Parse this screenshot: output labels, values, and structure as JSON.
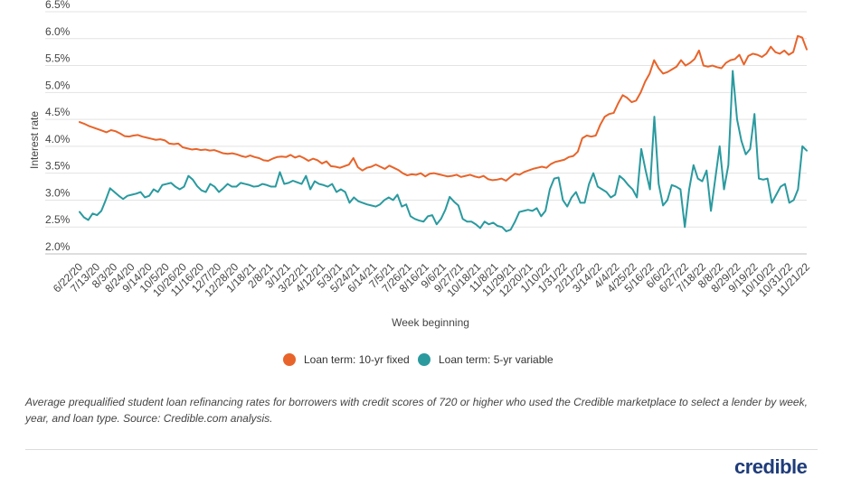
{
  "chart_data": {
    "type": "line",
    "title": "",
    "xlabel": "Week beginning",
    "ylabel": "Interest rate",
    "ylim": [
      2.0,
      6.5
    ],
    "y_ticks": [
      "2.0%",
      "2.5%",
      "3.0%",
      "3.5%",
      "4.0%",
      "4.5%",
      "5.0%",
      "5.5%",
      "6.0%",
      "6.5%"
    ],
    "grid": "horizontal",
    "legend_position": "bottom",
    "x_tick_labels": [
      "6/22/20",
      "7/13/20",
      "8/3/20",
      "8/24/20",
      "9/14/20",
      "10/5/20",
      "10/26/20",
      "11/16/20",
      "12/7/20",
      "12/28/20",
      "1/18/21",
      "2/8/21",
      "3/1/21",
      "3/22/21",
      "4/12/21",
      "5/3/21",
      "5/24/21",
      "6/14/21",
      "7/5/21",
      "7/26/21",
      "8/16/21",
      "9/6/21",
      "9/27/21",
      "10/18/21",
      "11/8/21",
      "11/29/21",
      "12/20/21",
      "1/10/22",
      "1/31/22",
      "2/21/22",
      "3/14/22",
      "4/4/22",
      "4/25/22",
      "5/16/22",
      "6/6/22",
      "6/27/22",
      "7/18/22",
      "8/8/22",
      "8/29/22",
      "9/19/22",
      "10/10/22",
      "10/31/22",
      "11/21/22"
    ],
    "series": [
      {
        "name": "Loan term: 10-yr fixed",
        "color": "#e8642a",
        "values": [
          4.45,
          4.42,
          4.38,
          4.35,
          4.32,
          4.29,
          4.26,
          4.3,
          4.28,
          4.24,
          4.19,
          4.18,
          4.2,
          4.21,
          4.18,
          4.16,
          4.14,
          4.12,
          4.13,
          4.11,
          4.05,
          4.04,
          4.05,
          3.98,
          3.96,
          3.94,
          3.95,
          3.93,
          3.94,
          3.92,
          3.93,
          3.9,
          3.87,
          3.86,
          3.87,
          3.85,
          3.82,
          3.8,
          3.83,
          3.8,
          3.78,
          3.74,
          3.73,
          3.77,
          3.8,
          3.81,
          3.8,
          3.84,
          3.79,
          3.82,
          3.78,
          3.73,
          3.77,
          3.74,
          3.68,
          3.72,
          3.63,
          3.62,
          3.6,
          3.63,
          3.66,
          3.78,
          3.61,
          3.55,
          3.6,
          3.62,
          3.66,
          3.62,
          3.58,
          3.64,
          3.6,
          3.56,
          3.5,
          3.46,
          3.48,
          3.47,
          3.5,
          3.44,
          3.49,
          3.5,
          3.48,
          3.46,
          3.44,
          3.45,
          3.47,
          3.43,
          3.45,
          3.47,
          3.44,
          3.42,
          3.45,
          3.39,
          3.37,
          3.38,
          3.4,
          3.36,
          3.43,
          3.49,
          3.47,
          3.52,
          3.55,
          3.58,
          3.6,
          3.62,
          3.6,
          3.67,
          3.71,
          3.73,
          3.75,
          3.8,
          3.82,
          3.9,
          4.15,
          4.2,
          4.18,
          4.2,
          4.4,
          4.55,
          4.6,
          4.62,
          4.8,
          4.95,
          4.9,
          4.82,
          4.85,
          5.0,
          5.2,
          5.35,
          5.6,
          5.45,
          5.35,
          5.38,
          5.43,
          5.48,
          5.6,
          5.5,
          5.55,
          5.62,
          5.78,
          5.5,
          5.48,
          5.5,
          5.47,
          5.45,
          5.55,
          5.6,
          5.62,
          5.7,
          5.52,
          5.68,
          5.72,
          5.7,
          5.66,
          5.72,
          5.85,
          5.75,
          5.72,
          5.78,
          5.7,
          5.75,
          6.05,
          6.02,
          5.8
        ]
      },
      {
        "name": "Loan term: 5-yr variable",
        "color": "#2a9a9f",
        "values": [
          2.78,
          2.68,
          2.63,
          2.75,
          2.72,
          2.8,
          3.0,
          3.22,
          3.15,
          3.08,
          3.02,
          3.08,
          3.1,
          3.12,
          3.15,
          3.05,
          3.08,
          3.2,
          3.15,
          3.28,
          3.3,
          3.32,
          3.25,
          3.2,
          3.25,
          3.45,
          3.38,
          3.26,
          3.18,
          3.15,
          3.3,
          3.25,
          3.15,
          3.22,
          3.3,
          3.25,
          3.25,
          3.32,
          3.3,
          3.28,
          3.25,
          3.26,
          3.3,
          3.28,
          3.25,
          3.25,
          3.52,
          3.3,
          3.32,
          3.36,
          3.33,
          3.3,
          3.45,
          3.2,
          3.35,
          3.3,
          3.28,
          3.25,
          3.3,
          3.15,
          3.2,
          3.15,
          2.95,
          3.05,
          2.98,
          2.95,
          2.92,
          2.9,
          2.88,
          2.92,
          3.0,
          3.05,
          3.0,
          3.1,
          2.88,
          2.92,
          2.7,
          2.65,
          2.62,
          2.6,
          2.7,
          2.72,
          2.55,
          2.65,
          2.82,
          3.06,
          2.97,
          2.9,
          2.65,
          2.6,
          2.6,
          2.55,
          2.48,
          2.6,
          2.55,
          2.58,
          2.52,
          2.5,
          2.42,
          2.45,
          2.6,
          2.78,
          2.8,
          2.82,
          2.8,
          2.85,
          2.7,
          2.8,
          3.2,
          3.4,
          3.42,
          3.0,
          2.88,
          3.05,
          3.15,
          2.95,
          2.95,
          3.3,
          3.5,
          3.25,
          3.2,
          3.15,
          3.05,
          3.1,
          3.45,
          3.38,
          3.28,
          3.2,
          3.05,
          3.95,
          3.55,
          3.2,
          4.55,
          3.3,
          2.9,
          3.0,
          3.28,
          3.25,
          3.2,
          2.5,
          3.2,
          3.65,
          3.4,
          3.35,
          3.55,
          2.8,
          3.4,
          4.0,
          3.2,
          3.65,
          5.4,
          4.5,
          4.1,
          3.85,
          3.95,
          4.6,
          3.4,
          3.38,
          3.4,
          2.95,
          3.1,
          3.25,
          3.3,
          2.95,
          3.0,
          3.2,
          4.0,
          3.92
        ]
      }
    ]
  },
  "caption": "Average prequalified student loan refinancing rates for borrowers with credit scores of 720 or higher who used the Credible marketplace to select a lender by week, year, and loan type. Source: Credible.com analysis.",
  "logo_text": "credible"
}
